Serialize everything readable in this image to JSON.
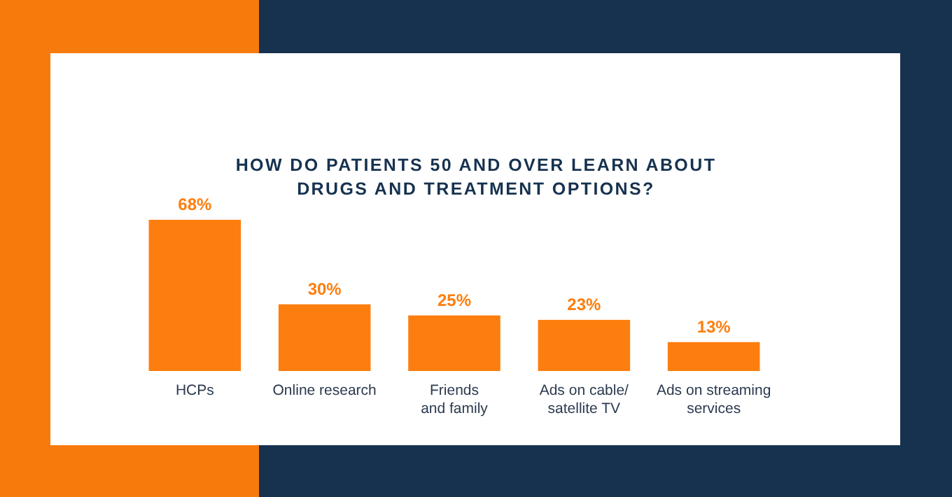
{
  "chart_data": {
    "type": "bar",
    "title": "HOW DO PATIENTS 50 AND OVER LEARN ABOUT\nDRUGS AND TREATMENT OPTIONS?",
    "categories": [
      "HCPs",
      "Online research",
      "Friends\nand family",
      "Ads on cable/\nsatellite TV",
      "Ads on streaming\nservices"
    ],
    "values": [
      68,
      30,
      25,
      23,
      13
    ],
    "value_labels": [
      "68%",
      "30%",
      "25%",
      "23%",
      "13%"
    ],
    "color": "#fd7e0f"
  }
}
